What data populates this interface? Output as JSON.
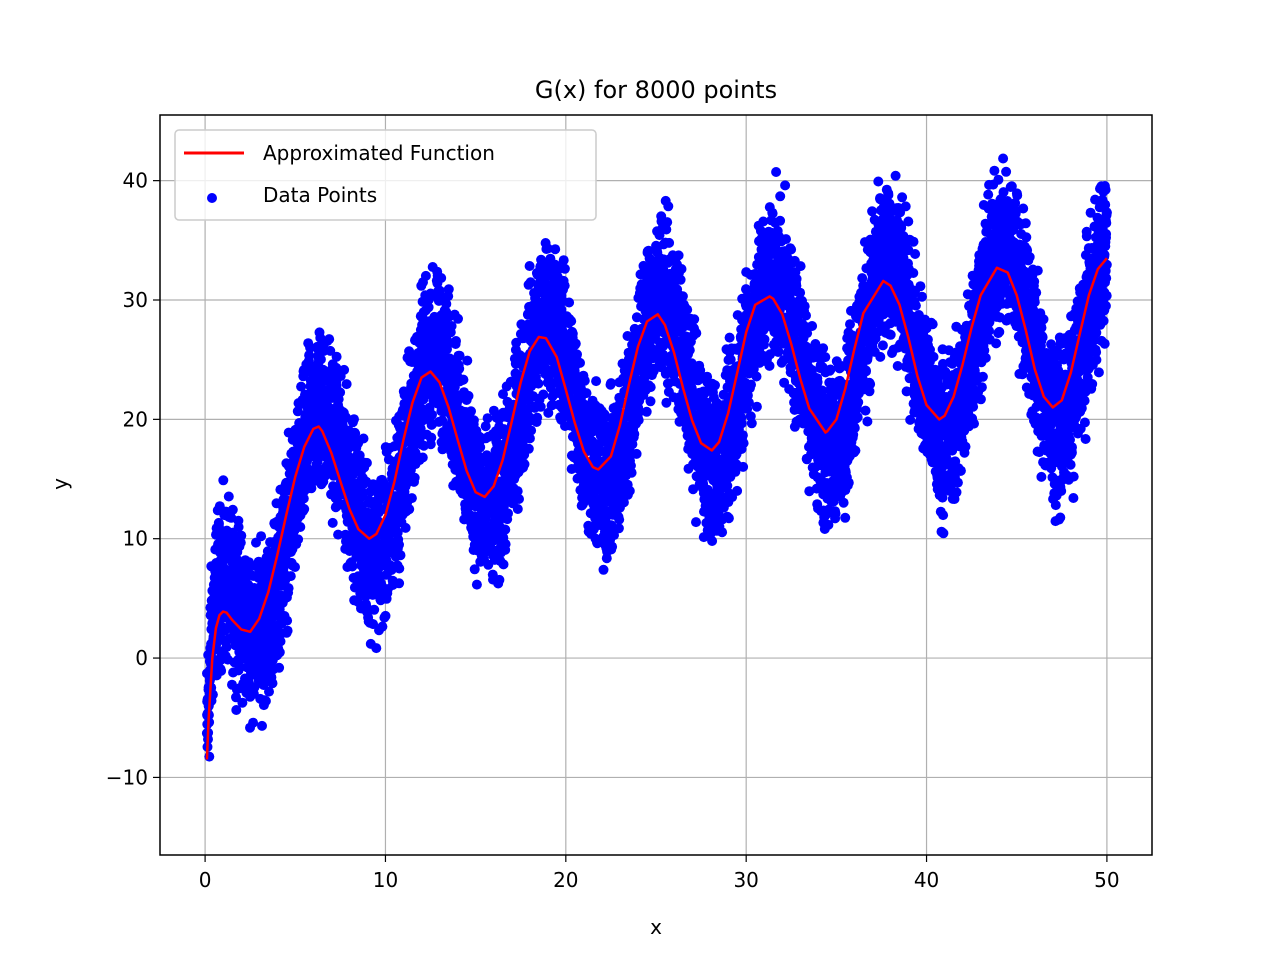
{
  "chart_data": {
    "type": "scatter",
    "title": "G(x) for 8000 points",
    "xlabel": "x",
    "ylabel": "y",
    "xlim": [
      -2.5,
      52.5
    ],
    "ylim": [
      -16.5,
      45.5
    ],
    "xticks": [
      0,
      10,
      20,
      30,
      40,
      50
    ],
    "yticks": [
      -10,
      0,
      10,
      20,
      30,
      40
    ],
    "xtick_labels": [
      "0",
      "10",
      "20",
      "30",
      "40",
      "50"
    ],
    "ytick_labels": [
      "−10",
      "0",
      "10",
      "20",
      "30",
      "40"
    ],
    "grid": true,
    "legend_position": "upper-left",
    "series": [
      {
        "name": "Approximated Function",
        "kind": "line",
        "color": "#ff0000",
        "x": [
          0.1,
          0.2,
          0.4,
          0.6,
          0.8,
          1.0,
          1.2,
          1.5,
          2.0,
          2.5,
          3.0,
          3.5,
          4.0,
          4.5,
          5.0,
          5.5,
          6.0,
          6.3,
          6.5,
          7.0,
          7.5,
          8.0,
          8.5,
          9.1,
          9.5,
          10.0,
          10.5,
          11.0,
          11.5,
          12.0,
          12.5,
          13.0,
          13.5,
          14.0,
          14.5,
          15.0,
          15.5,
          16.0,
          16.5,
          17.0,
          17.5,
          18.0,
          18.5,
          18.9,
          19.5,
          20.0,
          20.5,
          21.0,
          21.5,
          21.8,
          22.5,
          23.0,
          23.5,
          24.0,
          24.5,
          25.1,
          25.5,
          26.0,
          26.5,
          27.0,
          27.5,
          28.1,
          28.5,
          29.0,
          29.5,
          30.0,
          30.5,
          31.3,
          31.5,
          32.0,
          32.5,
          33.0,
          33.5,
          34.4,
          34.5,
          35.0,
          35.5,
          36.0,
          36.5,
          37.6,
          38.0,
          38.5,
          39.0,
          39.5,
          40.0,
          40.7,
          41.0,
          41.5,
          42.0,
          42.5,
          43.0,
          43.9,
          44.5,
          45.0,
          45.5,
          46.0,
          46.5,
          47.0,
          47.5,
          48.0,
          48.5,
          49.0,
          49.5,
          50.0
        ],
        "y": [
          -8.5,
          -5.0,
          0.0,
          2.5,
          3.6,
          3.9,
          3.8,
          3.2,
          2.4,
          2.2,
          3.3,
          5.5,
          8.6,
          12.0,
          15.2,
          17.7,
          19.2,
          19.4,
          19.0,
          17.2,
          14.8,
          12.5,
          10.8,
          10.0,
          10.4,
          12.0,
          14.8,
          18.3,
          21.4,
          23.5,
          24.0,
          23.1,
          21.0,
          18.3,
          15.7,
          13.9,
          13.5,
          14.4,
          16.6,
          19.8,
          23.1,
          25.7,
          26.9,
          26.8,
          25.2,
          22.5,
          19.7,
          17.3,
          16.0,
          15.8,
          16.9,
          19.5,
          22.9,
          26.1,
          28.2,
          28.8,
          27.9,
          25.6,
          22.6,
          19.9,
          18.0,
          17.4,
          18.1,
          20.5,
          23.9,
          27.3,
          29.6,
          30.3,
          30.1,
          28.8,
          26.3,
          23.4,
          20.9,
          18.9,
          19.0,
          20.0,
          22.6,
          25.9,
          28.9,
          31.6,
          31.2,
          29.6,
          26.8,
          23.6,
          21.2,
          20.0,
          20.3,
          21.9,
          24.6,
          27.7,
          30.4,
          32.7,
          32.3,
          30.4,
          27.5,
          24.2,
          21.9,
          21.0,
          21.6,
          23.9,
          27.2,
          30.4,
          32.6,
          33.5
        ]
      },
      {
        "name": "Data Points",
        "kind": "scatter",
        "color": "#0000ff",
        "count": 8000,
        "band_upper_offset": 10,
        "band_lower_offset": -10
      }
    ]
  }
}
